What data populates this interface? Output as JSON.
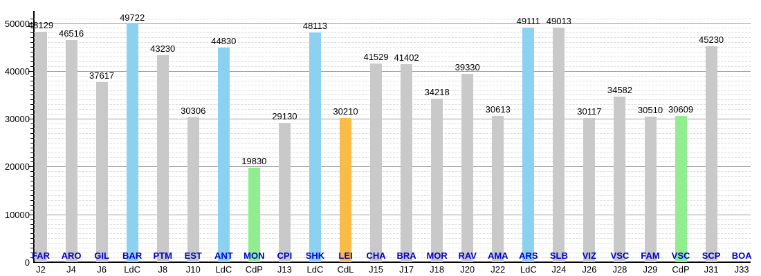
{
  "chart_data": {
    "type": "bar",
    "title": "",
    "xlabel": "",
    "ylabel": "",
    "ylim": [
      0,
      51500
    ],
    "y_ticks": [
      0,
      10000,
      20000,
      30000,
      40000,
      50000
    ],
    "y_minor_step": 1000,
    "grid": true,
    "legend_position": "none",
    "categories": [
      "FAR",
      "ARO",
      "GIL",
      "BAR",
      "PTM",
      "EST",
      "ANT",
      "MON",
      "CPI",
      "SHK",
      "LEI",
      "CHA",
      "BRA",
      "MOR",
      "RAV",
      "AMA",
      "ARS",
      "SLB",
      "VIZ",
      "VSC",
      "FAM",
      "VSC",
      "SCP",
      "BOA"
    ],
    "rounds": [
      "J2",
      "J4",
      "J6",
      "LdC",
      "J8",
      "J10",
      "LdC",
      "CdP",
      "J13",
      "LdC",
      "CdL",
      "J15",
      "J17",
      "J18",
      "J20",
      "J22",
      "LdC",
      "J24",
      "J26",
      "J28",
      "J29",
      "CdP",
      "J31",
      "J33"
    ],
    "values": [
      48129,
      46516,
      37617,
      49722,
      43230,
      30306,
      44830,
      19830,
      29130,
      48113,
      30210,
      41529,
      41402,
      34218,
      39330,
      30613,
      49111,
      49013,
      30117,
      34582,
      30510,
      30609,
      45230,
      null
    ],
    "bar_colors": [
      "gray",
      "gray",
      "gray",
      "blue",
      "gray",
      "gray",
      "blue",
      "green",
      "gray",
      "blue",
      "orange",
      "gray",
      "gray",
      "gray",
      "gray",
      "gray",
      "blue",
      "gray",
      "gray",
      "gray",
      "gray",
      "green",
      "gray",
      "gray"
    ],
    "color_map": {
      "gray": "#C9C9C9",
      "blue": "#8CD1F0",
      "green": "#90EE90",
      "orange": "#F9BC47"
    },
    "opponent_label_color": "#0000CC",
    "axis_color": "#000000",
    "major_grid_color": "#999999",
    "minor_grid_color": "#DCDCDC"
  }
}
